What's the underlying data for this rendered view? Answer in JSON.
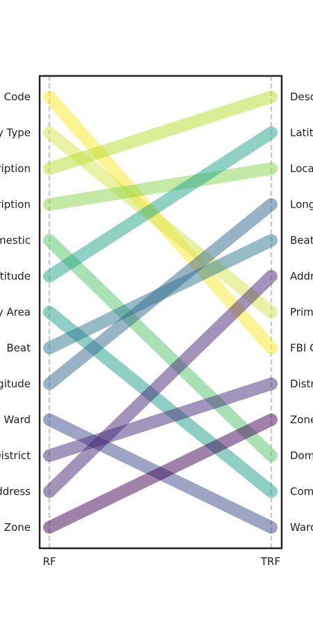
{
  "chart_data": {
    "type": "slope",
    "xlabels": [
      "RF",
      "TRF"
    ],
    "left_labels": [
      "Code",
      "y Type",
      "ription",
      "ription",
      "mestic",
      "atitude",
      "y Area",
      "Beat",
      "gitude",
      "Ward",
      "District",
      "ddress",
      "Zone"
    ],
    "right_labels": [
      "Desc",
      "Latitu",
      "Loca",
      "Long",
      "Beat",
      "Addr",
      "Prim",
      "FBI C",
      "Distr",
      "Zone",
      "Dom",
      "Com",
      "Ward"
    ],
    "lines": [
      {
        "from": 1,
        "to": 8,
        "color": "#fde725"
      },
      {
        "from": 2,
        "to": 7,
        "color": "#d4e64a"
      },
      {
        "from": 3,
        "to": 1,
        "color": "#b5de2b"
      },
      {
        "from": 4,
        "to": 3,
        "color": "#86d549"
      },
      {
        "from": 5,
        "to": 11,
        "color": "#52c569"
      },
      {
        "from": 6,
        "to": 2,
        "color": "#20a486"
      },
      {
        "from": 7,
        "to": 12,
        "color": "#1f9e89"
      },
      {
        "from": 8,
        "to": 5,
        "color": "#2a788e"
      },
      {
        "from": 9,
        "to": 4,
        "color": "#31688e"
      },
      {
        "from": 10,
        "to": 13,
        "color": "#3e4a89"
      },
      {
        "from": 11,
        "to": 9,
        "color": "#472d7b"
      },
      {
        "from": 12,
        "to": 6,
        "color": "#482878"
      },
      {
        "from": 13,
        "to": 10,
        "color": "#440154"
      }
    ],
    "rank_range": [
      1,
      13
    ],
    "grid": false,
    "colors": {
      "frame": "#222222",
      "guide": "#cccccc"
    }
  }
}
